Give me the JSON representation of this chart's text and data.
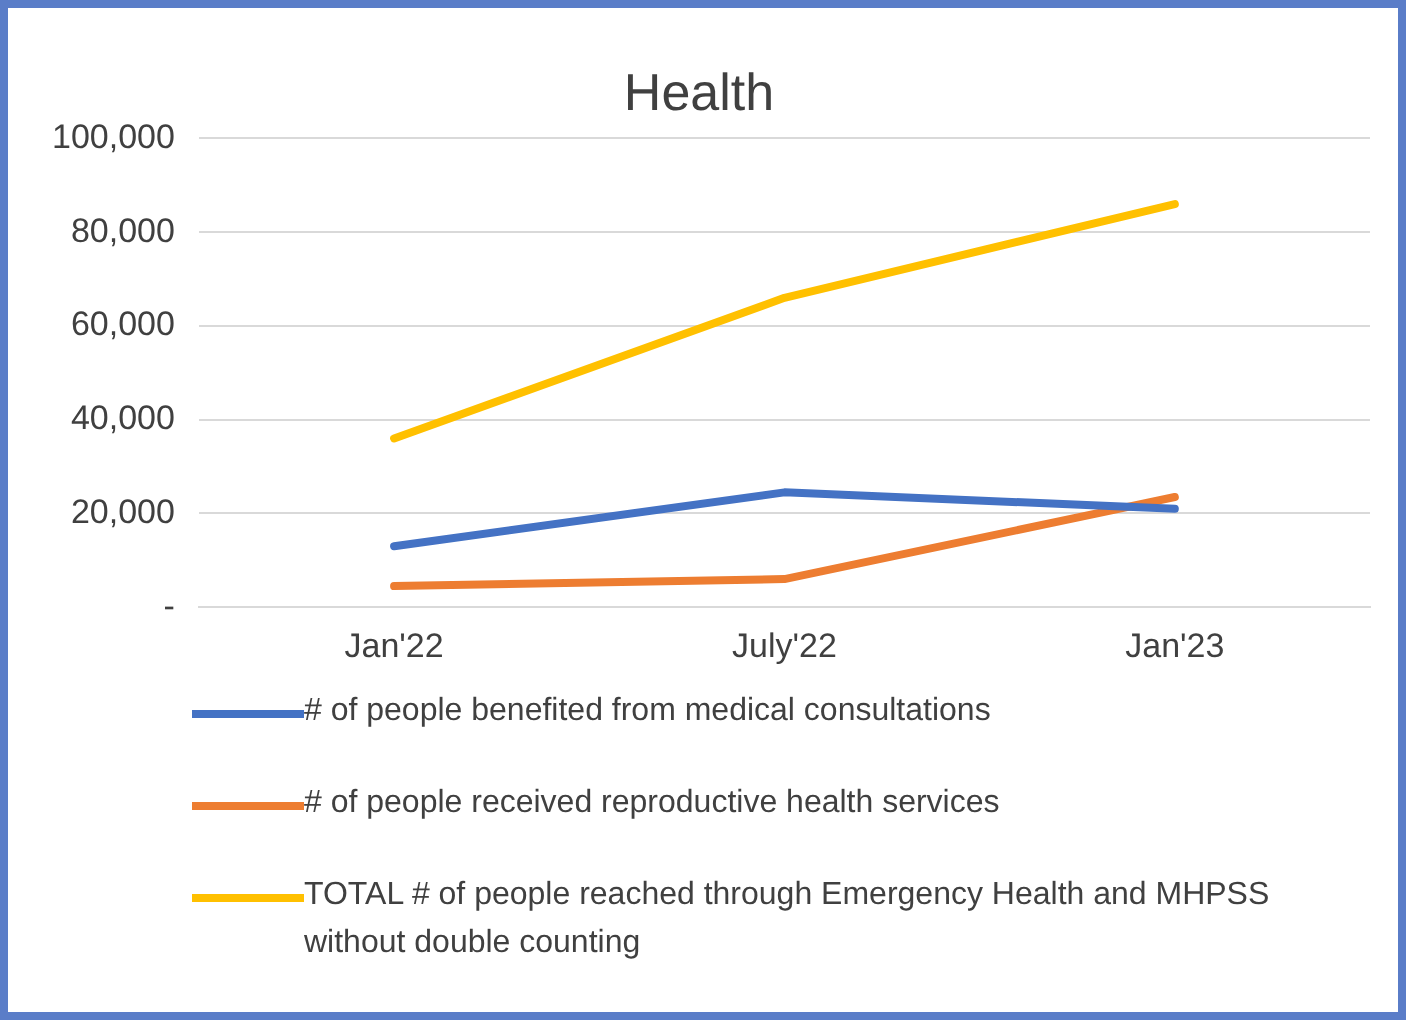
{
  "chart_data": {
    "type": "line",
    "title": "Health",
    "categories": [
      "Jan'22",
      "July'22",
      "Jan'23"
    ],
    "series": [
      {
        "name": "# of people benefited from medical consultations",
        "color": "#4472c4",
        "values": [
          13000,
          24500,
          21000
        ]
      },
      {
        "name": "# of people received reproductive health services",
        "color": "#ed7d31",
        "values": [
          4500,
          6000,
          23500
        ]
      },
      {
        "name": "TOTAL # of people reached through Emergency Health and MHPSS without double counting",
        "color": "#ffc000",
        "values": [
          36000,
          66000,
          86000
        ]
      }
    ],
    "ylim": [
      0,
      100000
    ],
    "yticks": [
      {
        "value": 0,
        "label": "-"
      },
      {
        "value": 20000,
        "label": "20,000"
      },
      {
        "value": 40000,
        "label": "40,000"
      },
      {
        "value": 60000,
        "label": "60,000"
      },
      {
        "value": 80000,
        "label": "80,000"
      },
      {
        "value": 100000,
        "label": "100,000"
      }
    ],
    "grid": "y",
    "legend": "bottom",
    "marker": "none",
    "line_style": "solid"
  }
}
